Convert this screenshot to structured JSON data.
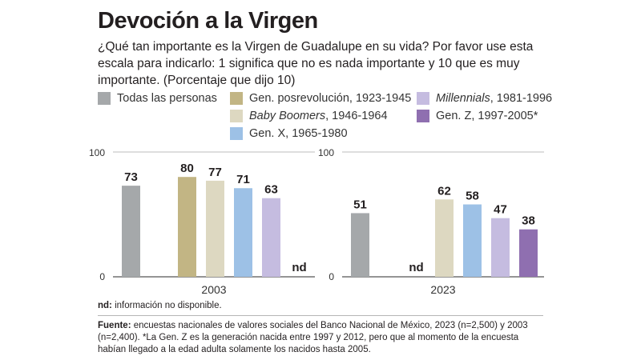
{
  "header": {
    "title": "Devoción a la Virgen",
    "subtitle": "¿Qué tan importante es la Virgen de Guadalupe en su vida? Por favor use esta escala para indicarlo: 1 significa que no es nada importante y 10 que es muy importante. (Porcentaje que dijo 10)"
  },
  "legend": [
    {
      "label": "Todas las personas",
      "italic_part": "",
      "rest": "Todas las personas",
      "color": "#a5a8aa"
    },
    {
      "label": "Gen. posrevolución, 1923-1945",
      "italic_part": "",
      "rest": "Gen. posrevolución, 1923-1945",
      "color": "#c2b584"
    },
    {
      "label": "Baby Boomers, 1946-1964",
      "italic_part": "Baby Boomers",
      "rest": ", 1946-1964",
      "color": "#ddd8c1"
    },
    {
      "label": "Gen. X, 1965-1980",
      "italic_part": "",
      "rest": "Gen. X, 1965-1980",
      "color": "#9dc1e6"
    },
    {
      "label": "Millennials, 1981-1996",
      "italic_part": "Millennials",
      "rest": ", 1981-1996",
      "color": "#c5bce0"
    },
    {
      "label": "Gen. Z, 1997-2005*",
      "italic_part": "",
      "rest": "Gen. Z, 1997-2005*",
      "color": "#8f6fb0"
    }
  ],
  "chart_data": {
    "type": "bar",
    "title": "Devoción a la Virgen",
    "ylim": [
      0,
      100
    ],
    "yticks": [
      "100",
      "0"
    ],
    "series_names": [
      "Todas las personas",
      "Gen. posrevolución, 1923-1945",
      "Baby Boomers, 1946-1964",
      "Gen. X, 1965-1980",
      "Millennials, 1981-1996",
      "Gen. Z, 1997-2005*"
    ],
    "panels": [
      {
        "category": "2003",
        "values": [
          73,
          80,
          77,
          71,
          63,
          null
        ],
        "labels": [
          "73",
          "80",
          "77",
          "71",
          "63",
          "nd"
        ]
      },
      {
        "category": "2023",
        "values": [
          51,
          null,
          62,
          58,
          47,
          38
        ],
        "labels": [
          "51",
          "nd",
          "62",
          "58",
          "47",
          "38"
        ]
      }
    ]
  },
  "footer": {
    "nd_key": "nd:",
    "nd_text": " información no disponible.",
    "source_key": "Fuente:",
    "source_text": " encuestas nacionales de valores sociales del Banco Nacional de México, 2023 (n=2,500) y 2003 (n=2,400). *La Gen. Z es la generación nacida entre 1997 y 2012, pero que al momento de la encuesta habían llegado a la edad adulta solamente los nacidos hasta 2005."
  }
}
